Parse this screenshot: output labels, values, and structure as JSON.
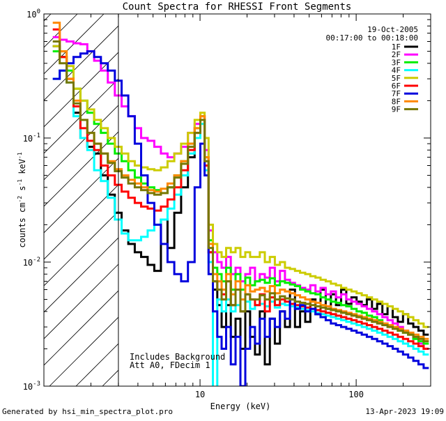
{
  "footer": {
    "left": "Generated by hsi_min_spectra_plot.pro",
    "right": "13-Apr-2023 19:09"
  },
  "chart_data": {
    "type": "line",
    "title": "Count Spectra for RHESSI Front Segments",
    "xlabel": "Energy (keV)",
    "ylabel": "counts cm-2 s-1 keV-1",
    "xscale": "log",
    "yscale": "log",
    "xlim": [
      1,
      300
    ],
    "ylim": [
      0.001,
      1
    ],
    "x_ticks": [
      {
        "value": 1,
        "label": ""
      },
      {
        "value": 10,
        "label": "10"
      },
      {
        "value": 100,
        "label": "100"
      }
    ],
    "y_ticks": [
      {
        "value": 1,
        "label": "10",
        "exp": "0"
      },
      {
        "value": 0.1,
        "label": "10",
        "exp": "-1"
      },
      {
        "value": 0.01,
        "label": "10",
        "exp": "-2"
      },
      {
        "value": 0.001,
        "label": "10",
        "exp": "-3"
      }
    ],
    "date": "19-Oct-2005",
    "time_range": "00:17:00 to 00:18:00",
    "legend_position": "top-right",
    "annotation": {
      "line1": "Includes Background",
      "line2": "Att A0, FDecim 1"
    },
    "hatched_region": {
      "x_min": 1,
      "x_max": 3
    },
    "energies": [
      1.2,
      1.33,
      1.47,
      1.63,
      1.8,
      2.0,
      2.2,
      2.44,
      2.7,
      3.0,
      3.3,
      3.65,
      4.0,
      4.4,
      4.85,
      5.35,
      5.9,
      6.5,
      7.2,
      7.95,
      8.8,
      9.7,
      10.4,
      11.0,
      11.7,
      12.5,
      13.3,
      14.2,
      15.2,
      16.3,
      17.5,
      18.8,
      20.2,
      21.7,
      23.3,
      25.0,
      27.0,
      29.0,
      31.3,
      33.7,
      36.3,
      39.1,
      42.1,
      45.4,
      49.0,
      52.8,
      57.0,
      61.4,
      66.3,
      71.5,
      77.1,
      83.2,
      89.8,
      96.8,
      104.5,
      112.7,
      121.6,
      131.2,
      141.6,
      152.8,
      164.9,
      177.9,
      192.0,
      207.2,
      223.6,
      241.3,
      260.4,
      281.0
    ],
    "series": [
      {
        "name": "1F",
        "color": "#000000",
        "values": [
          0.55,
          0.45,
          0.3,
          0.16,
          0.1,
          0.085,
          0.075,
          0.05,
          0.035,
          0.025,
          0.018,
          0.014,
          0.012,
          0.011,
          0.0095,
          0.0085,
          0.022,
          0.013,
          0.025,
          0.04,
          0.07,
          0.1,
          0.14,
          0.06,
          0.012,
          0.006,
          0.0045,
          0.003,
          0.0045,
          0.0025,
          0.0035,
          0.002,
          0.004,
          0.0025,
          0.0018,
          0.004,
          0.0015,
          0.0035,
          0.0022,
          0.004,
          0.003,
          0.006,
          0.003,
          0.004,
          0.0033,
          0.005,
          0.0038,
          0.006,
          0.0042,
          0.0055,
          0.0045,
          0.006,
          0.0046,
          0.0052,
          0.0048,
          0.0045,
          0.005,
          0.0042,
          0.0046,
          0.0038,
          0.0044,
          0.0036,
          0.0033,
          0.0038,
          0.0032,
          0.003,
          0.0028,
          0.0026
        ]
      },
      {
        "name": "2F",
        "color": "#ff00ff",
        "values": [
          0.65,
          0.62,
          0.6,
          0.58,
          0.57,
          0.5,
          0.42,
          0.35,
          0.28,
          0.22,
          0.18,
          0.15,
          0.12,
          0.1,
          0.095,
          0.085,
          0.075,
          0.07,
          0.075,
          0.085,
          0.11,
          0.13,
          0.15,
          0.08,
          0.018,
          0.012,
          0.01,
          0.009,
          0.011,
          0.008,
          0.009,
          0.007,
          0.008,
          0.009,
          0.007,
          0.008,
          0.0075,
          0.009,
          0.007,
          0.0085,
          0.0072,
          0.0068,
          0.0065,
          0.0062,
          0.006,
          0.0065,
          0.0058,
          0.0062,
          0.0055,
          0.0058,
          0.0052,
          0.0055,
          0.005,
          0.0048,
          0.0046,
          0.0044,
          0.0042,
          0.004,
          0.0038,
          0.0036,
          0.0034,
          0.0032,
          0.003,
          0.0028,
          0.0026,
          0.0024,
          0.0022,
          0.002
        ]
      },
      {
        "name": "3F",
        "color": "#00ee00",
        "values": [
          0.5,
          0.45,
          0.35,
          0.25,
          0.2,
          0.16,
          0.13,
          0.11,
          0.09,
          0.075,
          0.065,
          0.055,
          0.048,
          0.043,
          0.04,
          0.038,
          0.036,
          0.04,
          0.05,
          0.065,
          0.09,
          0.12,
          0.15,
          0.07,
          0.015,
          0.009,
          0.008,
          0.007,
          0.009,
          0.006,
          0.008,
          0.006,
          0.0075,
          0.0065,
          0.007,
          0.0072,
          0.0068,
          0.0074,
          0.0065,
          0.007,
          0.0068,
          0.0066,
          0.0064,
          0.006,
          0.0058,
          0.0056,
          0.0055,
          0.0052,
          0.005,
          0.0048,
          0.0047,
          0.0045,
          0.0044,
          0.0042,
          0.004,
          0.0039,
          0.0037,
          0.0036,
          0.0034,
          0.0032,
          0.0031,
          0.003,
          0.0028,
          0.0027,
          0.0026,
          0.0024,
          0.0023,
          0.0022
        ]
      },
      {
        "name": "4F",
        "color": "#00ffff",
        "values": [
          0.3,
          0.35,
          0.28,
          0.15,
          0.1,
          0.08,
          0.055,
          0.045,
          0.033,
          0.022,
          0.017,
          0.015,
          0.015,
          0.016,
          0.018,
          0.02,
          0.022,
          0.027,
          0.035,
          0.05,
          0.075,
          0.1,
          0.13,
          0.055,
          0.01,
          0.0009,
          0.005,
          0.004,
          0.005,
          0.004,
          0.0045,
          0.004,
          0.0048,
          0.0042,
          0.0045,
          0.0046,
          0.0044,
          0.0048,
          0.0043,
          0.0046,
          0.0045,
          0.0044,
          0.0043,
          0.0042,
          0.0041,
          0.004,
          0.0039,
          0.0038,
          0.0037,
          0.0036,
          0.0035,
          0.0034,
          0.0033,
          0.0032,
          0.0031,
          0.003,
          0.0029,
          0.0028,
          0.0027,
          0.0026,
          0.0025,
          0.0024,
          0.0023,
          0.0022,
          0.0021,
          0.002,
          0.0019,
          0.0018
        ]
      },
      {
        "name": "5F",
        "color": "#cccc00",
        "values": [
          0.55,
          0.5,
          0.38,
          0.25,
          0.2,
          0.17,
          0.14,
          0.12,
          0.1,
          0.085,
          0.075,
          0.065,
          0.06,
          0.058,
          0.056,
          0.055,
          0.058,
          0.065,
          0.075,
          0.09,
          0.11,
          0.14,
          0.16,
          0.1,
          0.02,
          0.014,
          0.012,
          0.011,
          0.013,
          0.012,
          0.013,
          0.011,
          0.012,
          0.011,
          0.011,
          0.012,
          0.01,
          0.011,
          0.0095,
          0.01,
          0.009,
          0.0088,
          0.0085,
          0.0082,
          0.008,
          0.0077,
          0.0075,
          0.0072,
          0.007,
          0.0067,
          0.0065,
          0.0062,
          0.006,
          0.0058,
          0.0056,
          0.0054,
          0.0052,
          0.005,
          0.0048,
          0.0046,
          0.0044,
          0.0042,
          0.004,
          0.0038,
          0.0036,
          0.0034,
          0.0032,
          0.003
        ]
      },
      {
        "name": "6F",
        "color": "#ff0000",
        "values": [
          0.75,
          0.45,
          0.3,
          0.18,
          0.12,
          0.095,
          0.08,
          0.06,
          0.05,
          0.042,
          0.037,
          0.033,
          0.03,
          0.028,
          0.027,
          0.026,
          0.028,
          0.032,
          0.04,
          0.055,
          0.08,
          0.11,
          0.14,
          0.06,
          0.012,
          0.007,
          0.006,
          0.0055,
          0.007,
          0.0045,
          0.006,
          0.004,
          0.0055,
          0.005,
          0.0045,
          0.0055,
          0.004,
          0.0052,
          0.0045,
          0.005,
          0.0048,
          0.0046,
          0.0045,
          0.0044,
          0.0043,
          0.0042,
          0.0041,
          0.004,
          0.0039,
          0.0038,
          0.0037,
          0.0036,
          0.0035,
          0.0034,
          0.0033,
          0.0032,
          0.0031,
          0.003,
          0.0029,
          0.0028,
          0.0027,
          0.0026,
          0.0025,
          0.0024,
          0.0023,
          0.0022,
          0.0021,
          0.002
        ]
      },
      {
        "name": "7F",
        "color": "#0000dd",
        "values": [
          0.3,
          0.35,
          0.4,
          0.45,
          0.48,
          0.5,
          0.45,
          0.4,
          0.35,
          0.29,
          0.22,
          0.15,
          0.09,
          0.05,
          0.03,
          0.02,
          0.014,
          0.01,
          0.008,
          0.007,
          0.01,
          0.04,
          0.09,
          0.05,
          0.008,
          0.004,
          0.0025,
          0.002,
          0.003,
          0.0015,
          0.0025,
          0.001,
          0.002,
          0.003,
          0.0022,
          0.0035,
          0.0025,
          0.0035,
          0.003,
          0.004,
          0.0035,
          0.005,
          0.0042,
          0.0045,
          0.004,
          0.0042,
          0.0038,
          0.0036,
          0.0034,
          0.0032,
          0.0031,
          0.003,
          0.0029,
          0.0028,
          0.0027,
          0.0026,
          0.0025,
          0.0024,
          0.0023,
          0.0022,
          0.0021,
          0.002,
          0.0019,
          0.0018,
          0.0017,
          0.0016,
          0.0015,
          0.0014
        ]
      },
      {
        "name": "8F",
        "color": "#ff8800",
        "values": [
          0.85,
          0.5,
          0.3,
          0.2,
          0.14,
          0.11,
          0.09,
          0.075,
          0.065,
          0.056,
          0.05,
          0.046,
          0.043,
          0.04,
          0.038,
          0.037,
          0.039,
          0.043,
          0.05,
          0.065,
          0.09,
          0.12,
          0.15,
          0.07,
          0.014,
          0.008,
          0.007,
          0.006,
          0.008,
          0.0055,
          0.007,
          0.005,
          0.0065,
          0.0058,
          0.006,
          0.0062,
          0.0058,
          0.0064,
          0.0056,
          0.006,
          0.0058,
          0.0056,
          0.0054,
          0.0052,
          0.005,
          0.0048,
          0.0047,
          0.0045,
          0.0044,
          0.0042,
          0.0041,
          0.004,
          0.0039,
          0.0038,
          0.0037,
          0.0036,
          0.0035,
          0.0034,
          0.0033,
          0.0032,
          0.0031,
          0.003,
          0.0029,
          0.0028,
          0.0027,
          0.0026,
          0.0025,
          0.0024
        ]
      },
      {
        "name": "9F",
        "color": "#777700",
        "values": [
          0.6,
          0.4,
          0.28,
          0.19,
          0.14,
          0.11,
          0.09,
          0.075,
          0.063,
          0.054,
          0.048,
          0.043,
          0.04,
          0.038,
          0.036,
          0.035,
          0.036,
          0.04,
          0.048,
          0.062,
          0.085,
          0.11,
          0.14,
          0.065,
          0.013,
          0.007,
          0.006,
          0.005,
          0.007,
          0.0045,
          0.006,
          0.004,
          0.0055,
          0.005,
          0.005,
          0.0054,
          0.005,
          0.0056,
          0.005,
          0.0053,
          0.0051,
          0.005,
          0.0048,
          0.0047,
          0.0046,
          0.0045,
          0.0044,
          0.0043,
          0.0042,
          0.0041,
          0.004,
          0.0039,
          0.0038,
          0.0037,
          0.0036,
          0.0035,
          0.0034,
          0.0033,
          0.0032,
          0.0031,
          0.003,
          0.0029,
          0.0028,
          0.0027,
          0.0026,
          0.0025,
          0.0024,
          0.0023
        ]
      }
    ]
  }
}
